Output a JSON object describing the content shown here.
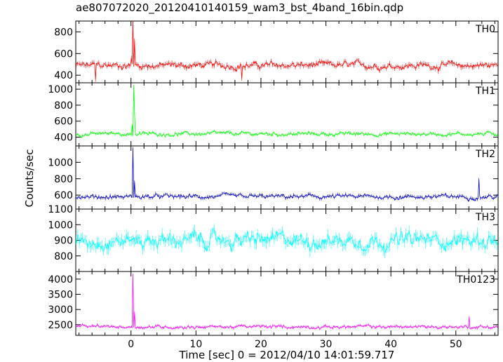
{
  "title": "ae807072020_20120410140159_wam3_bst_4band_16bin.qdp",
  "chart_data": {
    "type": "line",
    "title": "ae807072020_20120410140159_wam3_bst_4band_16bin.qdp",
    "xlabel": "Time [sec] 0 = 2012/04/10 14:01:59.717",
    "ylabel": "Counts/sec",
    "xlim": [
      -8.5,
      56.5
    ],
    "x_ticks": [
      0,
      10,
      20,
      30,
      40,
      50
    ],
    "grid": false,
    "panels": [
      {
        "name": "TH0",
        "color": "#ff0000",
        "ylim": [
          330,
          900
        ],
        "y_ticks": [
          400,
          600,
          800
        ],
        "baseline": 490,
        "noise": 45,
        "spikes": [
          {
            "x": -5.5,
            "y": 360
          },
          {
            "x": 0.0,
            "y": 560
          },
          {
            "x": 0.3,
            "y": 900
          },
          {
            "x": 0.6,
            "y": 720
          },
          {
            "x": 17.0,
            "y": 370
          }
        ]
      },
      {
        "name": "TH1",
        "color": "#00ff00",
        "ylim": [
          290,
          1080
        ],
        "y_ticks": [
          400,
          600,
          800,
          1000
        ],
        "baseline": 440,
        "noise": 35,
        "spikes": [
          {
            "x": 0.2,
            "y": 560
          },
          {
            "x": 0.4,
            "y": 1050
          },
          {
            "x": 0.6,
            "y": 700
          }
        ]
      },
      {
        "name": "TH2",
        "color": "#0000cc",
        "ylim": [
          430,
          1200
        ],
        "y_ticks": [
          600,
          800,
          1000
        ],
        "baseline": 580,
        "noise": 40,
        "spikes": [
          {
            "x": 0.3,
            "y": 1170
          },
          {
            "x": 0.5,
            "y": 760
          },
          {
            "x": 53.5,
            "y": 790
          }
        ]
      },
      {
        "name": "TH3",
        "color": "#00ffff",
        "ylim": [
          700,
          1100
        ],
        "y_ticks": [
          800,
          900,
          1000,
          1100
        ],
        "baseline": 900,
        "noise": 70,
        "spikes": []
      },
      {
        "name": "TH0123",
        "color": "#ff00ff",
        "ylim": [
          2150,
          4250
        ],
        "y_ticks": [
          2500,
          3000,
          3500,
          4000
        ],
        "baseline": 2430,
        "noise": 80,
        "spikes": [
          {
            "x": 0.3,
            "y": 4150
          },
          {
            "x": 0.5,
            "y": 2900
          },
          {
            "x": 52.0,
            "y": 2750
          }
        ]
      }
    ]
  }
}
